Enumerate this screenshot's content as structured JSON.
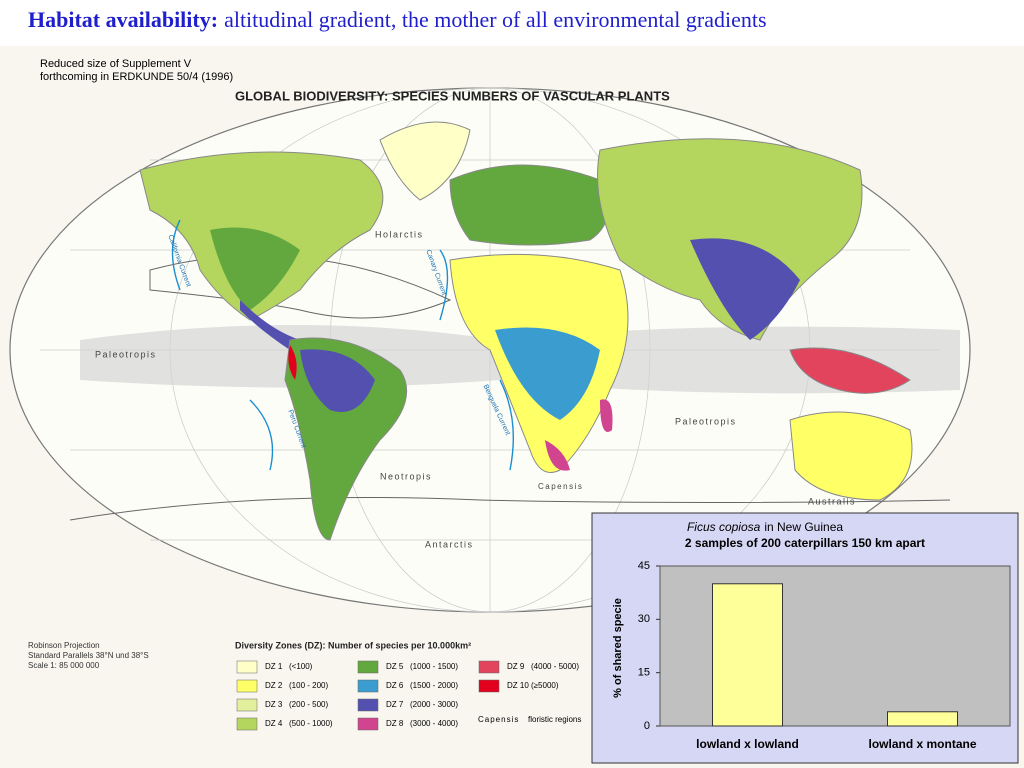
{
  "header": {
    "title_bold": "Habitat availability:",
    "title_rest": "altitudinal gradient, the mother of all environmental gradients"
  },
  "map": {
    "note": [
      "Reduced size of Supplement V",
      "forthcoming in ERDKUNDE 50/4 (1996)"
    ],
    "title": "GLOBAL BIODIVERSITY: SPECIES NUMBERS OF VASCULAR PLANTS",
    "regions": [
      "Holarctis",
      "Paleotropis",
      "Paleotropis",
      "Neotropis",
      "Capensis",
      "Australis",
      "Antarctis"
    ],
    "currents": [
      "California Current",
      "Canary Current",
      "Peru Current",
      "Benguela Current"
    ],
    "projection": [
      "Robinson Projection",
      "Standard Parallels 38°N und 38°S",
      "Scale 1: 85 000 000"
    ],
    "legend_title": "Diversity Zones (DZ): Number of species per 10.000km²",
    "legend": [
      {
        "name": "DZ 1",
        "range": "(<100)",
        "color": "#ffffc8"
      },
      {
        "name": "DZ 2",
        "range": "(100 - 200)",
        "color": "#ffff66"
      },
      {
        "name": "DZ 3",
        "range": "(200 - 500)",
        "color": "#e2ef9c"
      },
      {
        "name": "DZ 4",
        "range": "(500 - 1000)",
        "color": "#b4d65e"
      },
      {
        "name": "DZ 5",
        "range": "(1000 - 1500)",
        "color": "#63a83e"
      },
      {
        "name": "DZ 6",
        "range": "(1500 - 2000)",
        "color": "#3a9ccf"
      },
      {
        "name": "DZ 7",
        "range": "(2000 - 3000)",
        "color": "#5450b0"
      },
      {
        "name": "DZ 8",
        "range": "(3000 - 4000)",
        "color": "#d14490"
      },
      {
        "name": "DZ 9",
        "range": "(4000 - 5000)",
        "color": "#e2445e"
      },
      {
        "name": "DZ 10",
        "range": "(≥5000)",
        "color": "#e2001e"
      }
    ],
    "floristic": {
      "name": "Capensis",
      "label": "floristic regions"
    }
  },
  "chart_data": {
    "type": "bar",
    "title_italic": "Ficus copiosa",
    "title": "in New Guinea",
    "subtitle": "2 samples of 200 caterpillars 150 km apart",
    "y_label": "% of shared specie",
    "categories": [
      "lowland x lowland",
      "lowland x montane"
    ],
    "values": [
      40,
      4
    ],
    "color": "#ffff99",
    "ylim": [
      0,
      45
    ],
    "yticks": [
      0,
      15,
      30,
      45
    ],
    "grid": false
  }
}
